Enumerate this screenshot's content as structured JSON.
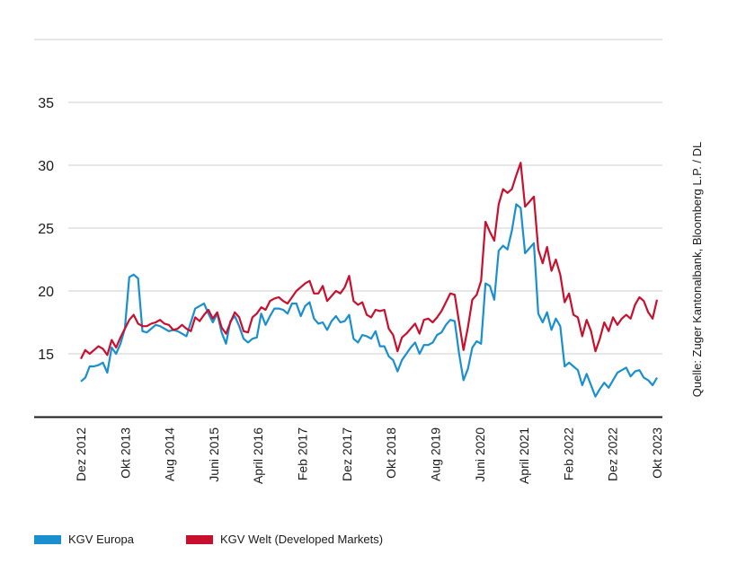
{
  "chart_data": {
    "type": "line",
    "title": "",
    "xlabel": "",
    "ylabel": "",
    "ylim": [
      10,
      40
    ],
    "yticks": [
      15,
      20,
      25,
      30,
      35
    ],
    "xtick_labels": [
      "Dez 2012",
      "Okt 2013",
      "Aug 2014",
      "Juni 2015",
      "April 2016",
      "Feb 2017",
      "Dez 2017",
      "Okt 2018",
      "Aug 2019",
      "Juni 2020",
      "April 2021",
      "Feb 2022",
      "Dez 2022",
      "Okt 2023"
    ],
    "x_start": "Dez 2012",
    "x_end": "Okt 2023",
    "source_note": "Quelle: Zuger Kantonalbank, Bloomberg L.P. / DL",
    "grid": "horizontal",
    "series": [
      {
        "name": "KGV Europa",
        "color": "#1a8fcf",
        "values": [
          12.8,
          13.1,
          14.0,
          14.0,
          14.1,
          14.3,
          13.5,
          15.5,
          15.0,
          15.8,
          17.0,
          21.1,
          21.3,
          21.0,
          16.8,
          16.7,
          17.0,
          17.3,
          17.2,
          17.0,
          16.8,
          16.9,
          16.8,
          16.6,
          16.4,
          17.5,
          18.6,
          18.8,
          19.0,
          18.2,
          17.5,
          18.2,
          16.7,
          15.8,
          17.6,
          18.0,
          17.2,
          16.2,
          15.9,
          16.2,
          16.3,
          18.2,
          17.3,
          18.0,
          18.6,
          18.6,
          18.5,
          18.2,
          19.0,
          19.0,
          18.0,
          18.8,
          19.1,
          17.8,
          17.4,
          17.5,
          16.9,
          17.6,
          18.0,
          17.5,
          17.6,
          18.1,
          16.2,
          15.9,
          16.5,
          16.4,
          16.2,
          16.8,
          15.6,
          15.6,
          14.8,
          14.5,
          13.6,
          14.5,
          15.0,
          15.5,
          15.9,
          15.0,
          15.7,
          15.7,
          15.9,
          16.5,
          16.7,
          17.3,
          17.7,
          17.6,
          15.0,
          12.9,
          13.8,
          15.5,
          16.0,
          15.8,
          20.6,
          20.4,
          19.3,
          23.2,
          23.6,
          23.3,
          24.8,
          26.9,
          26.6,
          23.0,
          23.4,
          23.8,
          18.2,
          17.5,
          18.3,
          16.9,
          17.8,
          17.2,
          14.0,
          14.3,
          14.0,
          13.7,
          12.5,
          13.4,
          12.5,
          11.6,
          12.2,
          12.7,
          12.3,
          12.9,
          13.5,
          13.7,
          13.9,
          13.2,
          13.6,
          13.7,
          13.1,
          12.9,
          12.5,
          13.1
        ]
      },
      {
        "name": "KGV Welt (Developed Markets)",
        "color": "#c8102e",
        "values": [
          14.6,
          15.3,
          15.0,
          15.3,
          15.6,
          15.4,
          14.9,
          16.1,
          15.5,
          16.3,
          17.0,
          17.7,
          18.1,
          17.4,
          17.2,
          17.2,
          17.4,
          17.5,
          17.7,
          17.4,
          17.3,
          16.9,
          17.0,
          17.3,
          17.0,
          16.8,
          17.9,
          17.6,
          18.1,
          18.5,
          17.8,
          18.3,
          17.1,
          16.6,
          17.5,
          18.3,
          17.9,
          16.8,
          16.7,
          17.9,
          18.2,
          18.7,
          18.5,
          19.2,
          19.4,
          19.5,
          19.2,
          19.0,
          19.5,
          20.0,
          20.3,
          20.6,
          20.8,
          19.8,
          19.8,
          20.4,
          19.2,
          19.6,
          20.0,
          19.8,
          20.3,
          21.2,
          19.2,
          18.9,
          19.1,
          18.1,
          17.9,
          18.5,
          18.4,
          18.5,
          17.0,
          16.5,
          15.2,
          16.3,
          16.6,
          17.0,
          17.4,
          16.6,
          17.7,
          17.8,
          17.5,
          17.9,
          18.4,
          19.1,
          19.8,
          19.7,
          17.5,
          15.3,
          17.1,
          19.3,
          19.7,
          20.8,
          25.5,
          24.7,
          24.0,
          26.9,
          28.1,
          27.8,
          28.1,
          29.2,
          30.2,
          26.7,
          27.1,
          27.5,
          23.3,
          22.2,
          23.5,
          21.6,
          22.5,
          21.3,
          19.1,
          19.8,
          18.1,
          17.9,
          16.4,
          17.7,
          16.8,
          15.2,
          16.2,
          17.5,
          16.8,
          17.9,
          17.3,
          17.8,
          18.1,
          17.8,
          18.9,
          19.5,
          19.2,
          18.3,
          17.8,
          19.3
        ]
      }
    ]
  },
  "legend": {
    "europa_label": "KGV Europa",
    "welt_label": "KGV Welt (Developed Markets)",
    "europa_color": "#1a8fcf",
    "welt_color": "#c8102e"
  }
}
